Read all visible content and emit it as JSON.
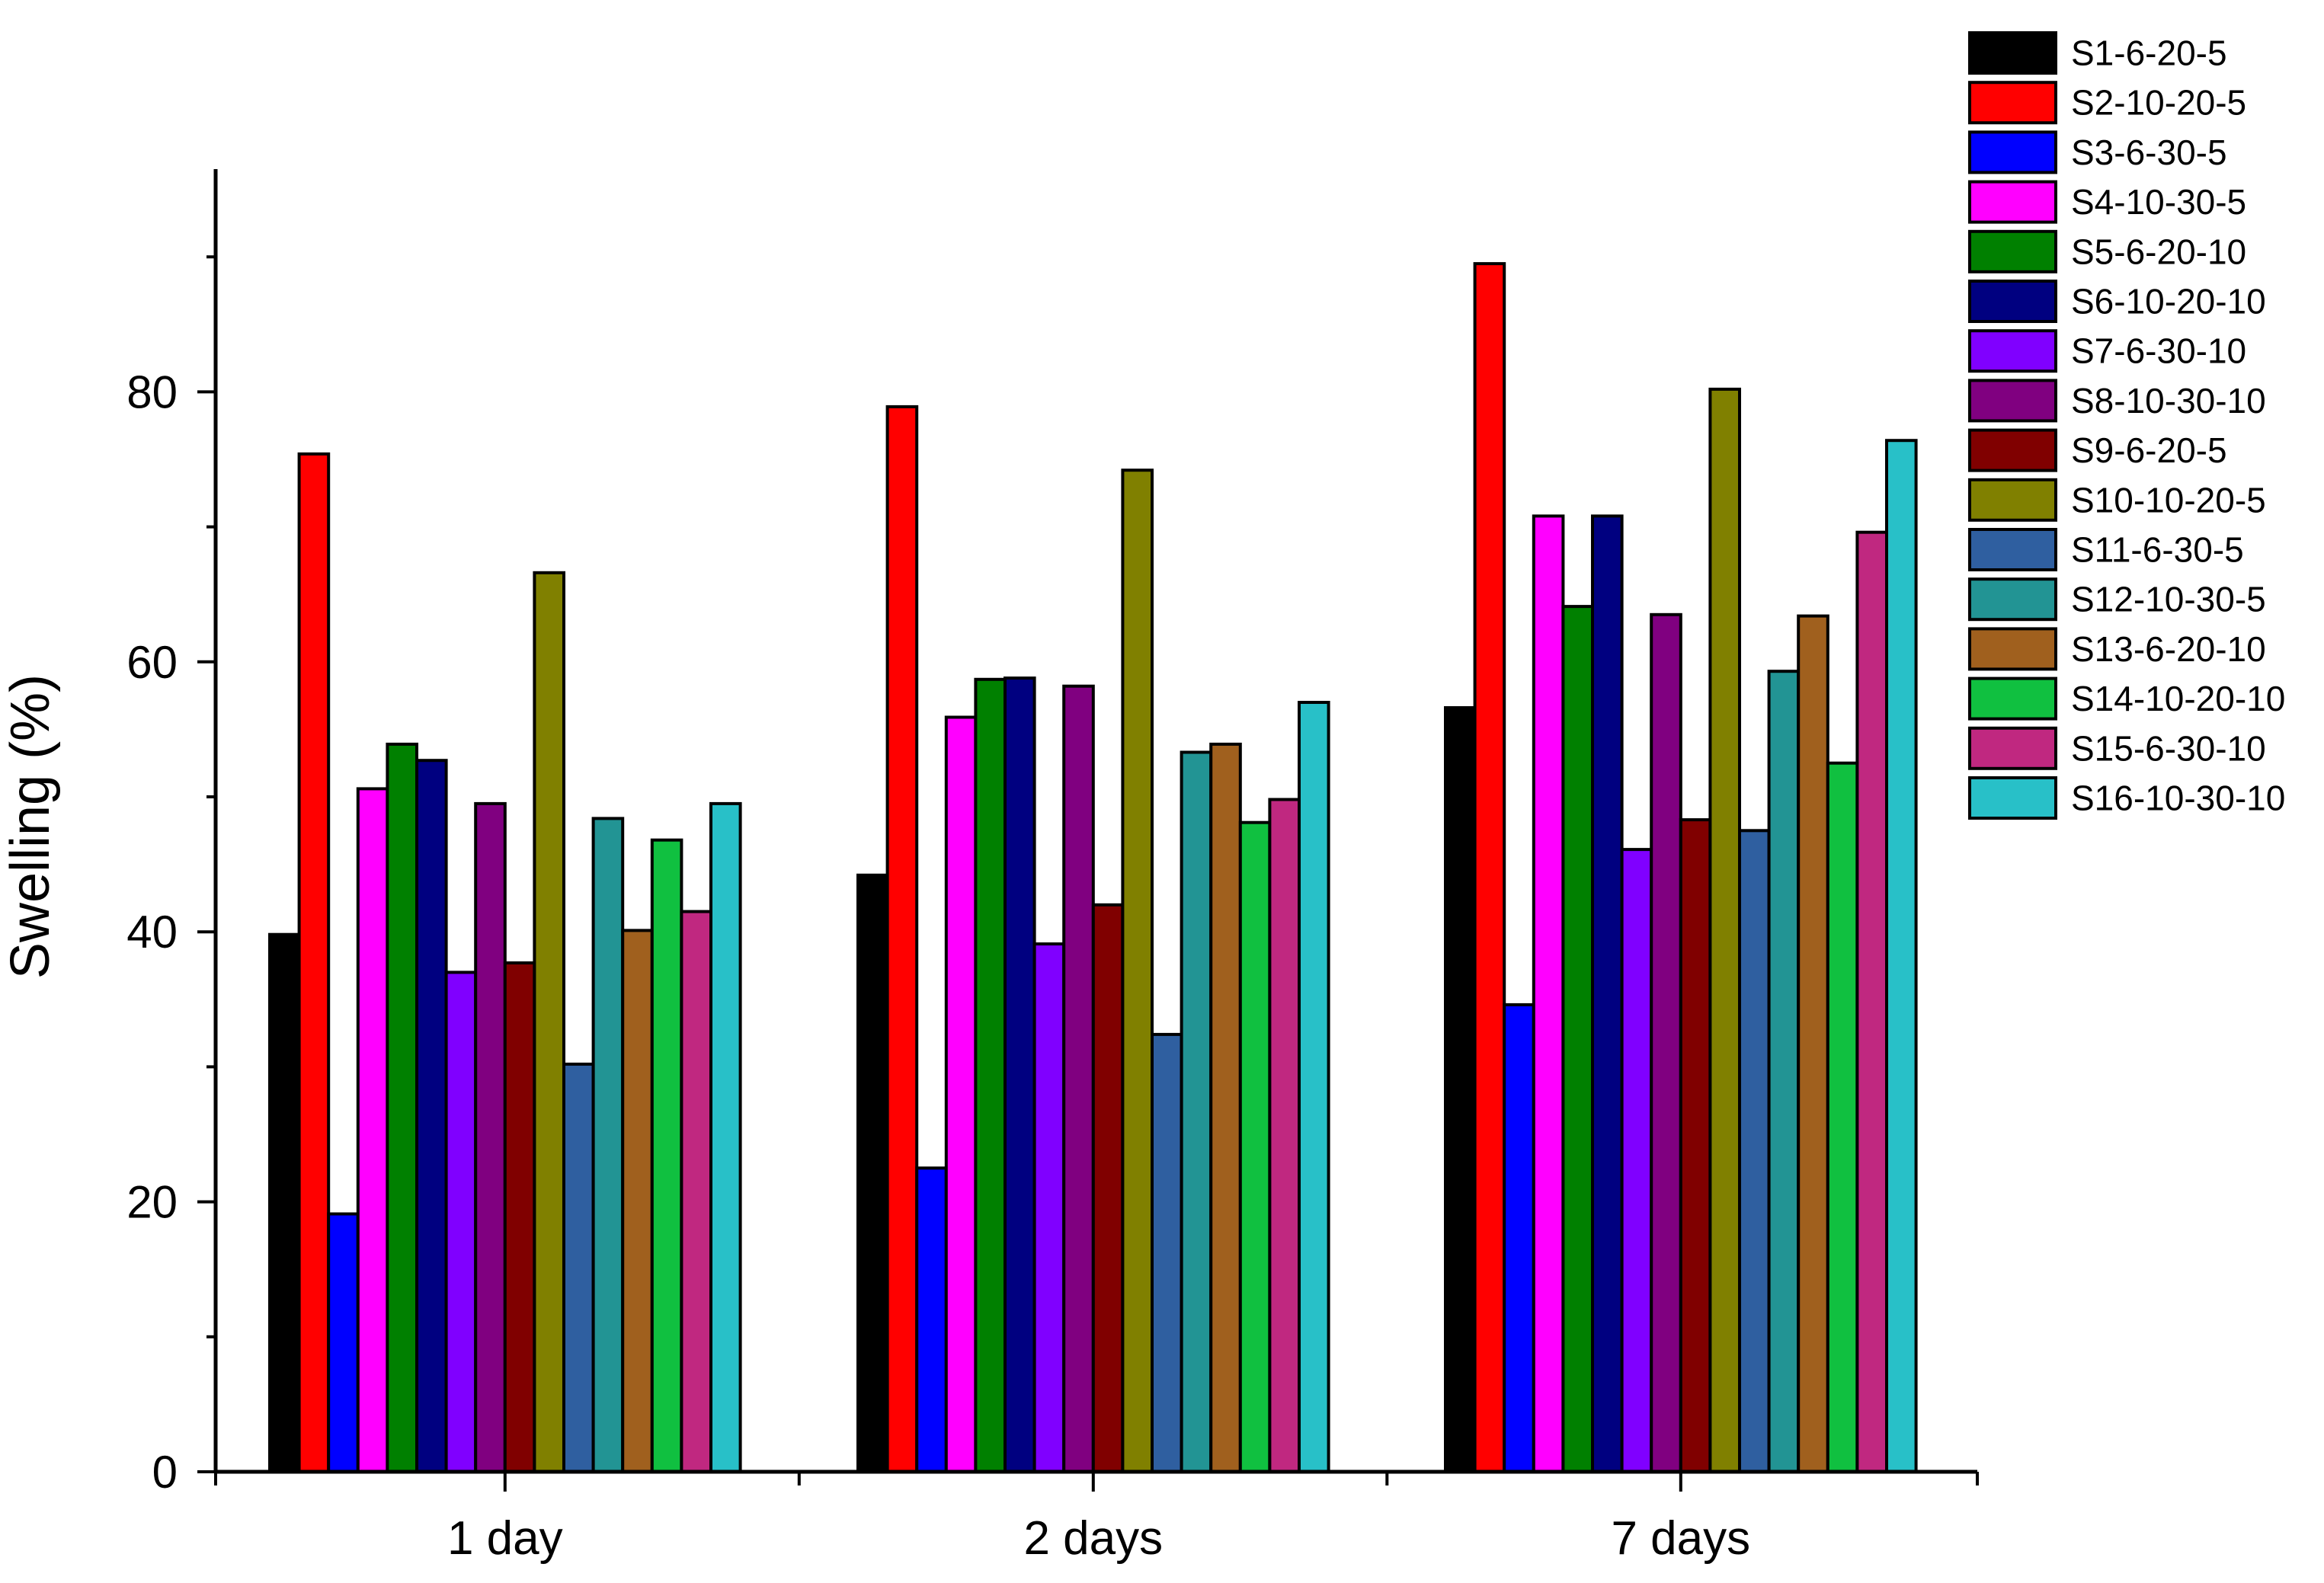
{
  "chart_data": {
    "type": "bar",
    "title": "",
    "xlabel": "",
    "ylabel": "Swelling (%)",
    "ylim": [
      0,
      97
    ],
    "yticks": [
      0,
      20,
      40,
      60,
      80
    ],
    "ytick_labels": [
      "0",
      "20",
      "40",
      "60",
      "80"
    ],
    "grid": false,
    "legend_position": "top-right outside",
    "categories": [
      "1 day",
      "2 days",
      "7 days"
    ],
    "series": [
      {
        "name": "S1-6-20-5",
        "color": "#000000",
        "values": [
          39.8,
          44.2,
          56.6
        ]
      },
      {
        "name": "S2-10-20-5",
        "color": "#ff0000",
        "values": [
          75.4,
          78.9,
          89.5
        ]
      },
      {
        "name": "S3-6-30-5",
        "color": "#0000ff",
        "values": [
          19.1,
          22.5,
          34.6
        ]
      },
      {
        "name": "S4-10-30-5",
        "color": "#ff00ff",
        "values": [
          50.6,
          55.9,
          70.8
        ]
      },
      {
        "name": "S5-6-20-10",
        "color": "#008000",
        "values": [
          53.9,
          58.7,
          64.1
        ]
      },
      {
        "name": "S6-10-20-10",
        "color": "#000080",
        "values": [
          52.7,
          58.8,
          70.8
        ]
      },
      {
        "name": "S7-6-30-10",
        "color": "#8000ff",
        "values": [
          37.0,
          39.1,
          46.1
        ]
      },
      {
        "name": "S8-10-30-10",
        "color": "#800080",
        "values": [
          49.5,
          58.2,
          63.5
        ]
      },
      {
        "name": "S9-6-20-5",
        "color": "#800000",
        "values": [
          37.7,
          42.0,
          48.3
        ]
      },
      {
        "name": "S10-10-20-5",
        "color": "#808000",
        "values": [
          66.6,
          74.2,
          80.2
        ]
      },
      {
        "name": "S11-6-30-5",
        "color": "#2f5fa0",
        "values": [
          30.2,
          32.4,
          47.5
        ]
      },
      {
        "name": "S12-10-30-5",
        "color": "#229494",
        "values": [
          48.4,
          53.3,
          59.3
        ]
      },
      {
        "name": "S13-6-20-10",
        "color": "#a0601e",
        "values": [
          40.1,
          53.9,
          63.4
        ]
      },
      {
        "name": "S14-10-20-10",
        "color": "#10c040",
        "values": [
          46.8,
          48.1,
          52.5
        ]
      },
      {
        "name": "S15-6-30-10",
        "color": "#c02880",
        "values": [
          41.5,
          49.8,
          69.6
        ]
      },
      {
        "name": "S16-10-30-10",
        "color": "#28c0c8",
        "values": [
          49.5,
          57.0,
          76.4
        ]
      }
    ]
  }
}
